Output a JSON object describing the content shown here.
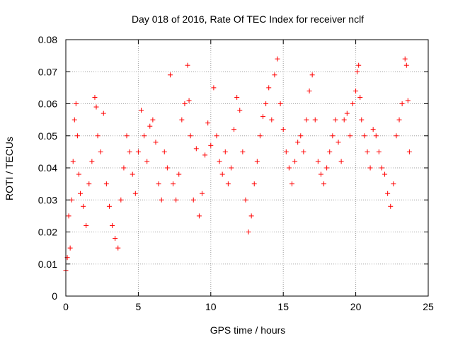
{
  "chart_data": {
    "type": "scatter",
    "title": "Day 018 of 2016, Rate Of TEC Index for receiver nclf",
    "xlabel": "GPS time / hours",
    "ylabel": "ROTI / TECUs",
    "xlim": [
      0,
      25
    ],
    "ylim": [
      0,
      0.08
    ],
    "xticks": [
      0,
      5,
      10,
      15,
      20,
      25
    ],
    "xtick_labels": [
      "0",
      "5",
      "10",
      "15",
      "20",
      "25"
    ],
    "yticks": [
      0,
      0.01,
      0.02,
      0.03,
      0.04,
      0.05,
      0.06,
      0.07,
      0.08
    ],
    "ytick_labels": [
      "0",
      "0.01",
      "0.02",
      "0.03",
      "0.04",
      "0.05",
      "0.06",
      "0.07",
      "0.08"
    ],
    "grid": true,
    "marker": "+",
    "color": "#ff0000",
    "series": [
      {
        "name": "ROTI",
        "points": [
          [
            0.0,
            0.008
          ],
          [
            0.1,
            0.012
          ],
          [
            0.2,
            0.025
          ],
          [
            0.3,
            0.015
          ],
          [
            0.4,
            0.03
          ],
          [
            0.5,
            0.042
          ],
          [
            0.6,
            0.055
          ],
          [
            0.7,
            0.06
          ],
          [
            0.8,
            0.05
          ],
          [
            0.9,
            0.038
          ],
          [
            1.0,
            0.032
          ],
          [
            1.2,
            0.028
          ],
          [
            1.4,
            0.022
          ],
          [
            1.6,
            0.035
          ],
          [
            1.8,
            0.042
          ],
          [
            2.0,
            0.062
          ],
          [
            2.1,
            0.059
          ],
          [
            2.2,
            0.05
          ],
          [
            2.4,
            0.045
          ],
          [
            2.6,
            0.057
          ],
          [
            2.8,
            0.035
          ],
          [
            3.0,
            0.028
          ],
          [
            3.2,
            0.022
          ],
          [
            3.4,
            0.018
          ],
          [
            3.6,
            0.015
          ],
          [
            3.8,
            0.03
          ],
          [
            4.0,
            0.04
          ],
          [
            4.2,
            0.05
          ],
          [
            4.4,
            0.045
          ],
          [
            4.6,
            0.038
          ],
          [
            4.8,
            0.032
          ],
          [
            5.0,
            0.045
          ],
          [
            5.2,
            0.058
          ],
          [
            5.4,
            0.05
          ],
          [
            5.6,
            0.042
          ],
          [
            5.8,
            0.053
          ],
          [
            6.0,
            0.055
          ],
          [
            6.2,
            0.048
          ],
          [
            6.4,
            0.035
          ],
          [
            6.6,
            0.03
          ],
          [
            6.8,
            0.045
          ],
          [
            7.0,
            0.04
          ],
          [
            7.2,
            0.069
          ],
          [
            7.4,
            0.035
          ],
          [
            7.6,
            0.03
          ],
          [
            7.8,
            0.038
          ],
          [
            8.0,
            0.055
          ],
          [
            8.2,
            0.06
          ],
          [
            8.4,
            0.072
          ],
          [
            8.5,
            0.061
          ],
          [
            8.6,
            0.05
          ],
          [
            8.8,
            0.03
          ],
          [
            9.0,
            0.046
          ],
          [
            9.2,
            0.025
          ],
          [
            9.4,
            0.032
          ],
          [
            9.6,
            0.044
          ],
          [
            9.8,
            0.054
          ],
          [
            10.0,
            0.047
          ],
          [
            10.2,
            0.065
          ],
          [
            10.4,
            0.05
          ],
          [
            10.6,
            0.042
          ],
          [
            10.8,
            0.038
          ],
          [
            11.0,
            0.045
          ],
          [
            11.2,
            0.035
          ],
          [
            11.4,
            0.04
          ],
          [
            11.6,
            0.052
          ],
          [
            11.8,
            0.062
          ],
          [
            12.0,
            0.058
          ],
          [
            12.2,
            0.045
          ],
          [
            12.4,
            0.03
          ],
          [
            12.6,
            0.02
          ],
          [
            12.8,
            0.025
          ],
          [
            13.0,
            0.035
          ],
          [
            13.2,
            0.042
          ],
          [
            13.4,
            0.05
          ],
          [
            13.6,
            0.056
          ],
          [
            13.8,
            0.06
          ],
          [
            14.0,
            0.065
          ],
          [
            14.2,
            0.055
          ],
          [
            14.4,
            0.069
          ],
          [
            14.6,
            0.074
          ],
          [
            14.8,
            0.06
          ],
          [
            15.0,
            0.052
          ],
          [
            15.2,
            0.045
          ],
          [
            15.4,
            0.04
          ],
          [
            15.6,
            0.035
          ],
          [
            15.8,
            0.042
          ],
          [
            16.0,
            0.048
          ],
          [
            16.2,
            0.05
          ],
          [
            16.4,
            0.045
          ],
          [
            16.6,
            0.055
          ],
          [
            16.8,
            0.064
          ],
          [
            17.0,
            0.069
          ],
          [
            17.2,
            0.055
          ],
          [
            17.4,
            0.042
          ],
          [
            17.6,
            0.038
          ],
          [
            17.8,
            0.035
          ],
          [
            18.0,
            0.04
          ],
          [
            18.2,
            0.045
          ],
          [
            18.4,
            0.05
          ],
          [
            18.6,
            0.055
          ],
          [
            18.8,
            0.048
          ],
          [
            19.0,
            0.042
          ],
          [
            19.2,
            0.055
          ],
          [
            19.4,
            0.057
          ],
          [
            19.6,
            0.05
          ],
          [
            19.8,
            0.06
          ],
          [
            20.0,
            0.064
          ],
          [
            20.1,
            0.07
          ],
          [
            20.2,
            0.072
          ],
          [
            20.3,
            0.062
          ],
          [
            20.4,
            0.055
          ],
          [
            20.6,
            0.05
          ],
          [
            20.8,
            0.045
          ],
          [
            21.0,
            0.04
          ],
          [
            21.2,
            0.052
          ],
          [
            21.4,
            0.05
          ],
          [
            21.6,
            0.045
          ],
          [
            21.8,
            0.04
          ],
          [
            22.0,
            0.038
          ],
          [
            22.2,
            0.032
          ],
          [
            22.4,
            0.028
          ],
          [
            22.6,
            0.035
          ],
          [
            22.8,
            0.05
          ],
          [
            23.0,
            0.055
          ],
          [
            23.2,
            0.06
          ],
          [
            23.4,
            0.074
          ],
          [
            23.5,
            0.072
          ],
          [
            23.6,
            0.061
          ],
          [
            23.7,
            0.045
          ]
        ]
      }
    ]
  }
}
